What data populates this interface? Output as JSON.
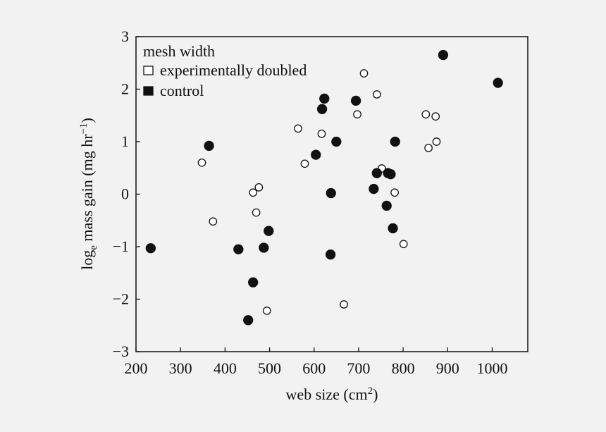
{
  "chart_data": {
    "type": "scatter",
    "xlabel": "web size (cm",
    "xlabel_sup": "2",
    "xlabel_tail": ")",
    "ylabel_main": "log",
    "ylabel_sub": "e",
    "ylabel_rest": " mass gain (mg hr",
    "ylabel_sup": "−1",
    "ylabel_tail": ")",
    "xlim": [
      200,
      1080
    ],
    "ylim": [
      -3,
      3
    ],
    "xticks": [
      200,
      300,
      400,
      500,
      600,
      700,
      800,
      900,
      1000
    ],
    "yticks": [
      -3,
      -2,
      -1,
      0,
      1,
      2,
      3
    ],
    "ytick_labels": [
      "−3",
      "−2",
      "−1",
      "0",
      "1",
      "2",
      "3"
    ],
    "grid": false,
    "legend": {
      "title": "mesh width",
      "position": "top-left",
      "entries": [
        "experimentally doubled",
        "control"
      ]
    },
    "series": [
      {
        "name": "experimentally doubled",
        "marker": "open-circle",
        "points": [
          [
            348,
            0.6
          ],
          [
            373,
            -0.52
          ],
          [
            463,
            0.03
          ],
          [
            470,
            -0.35
          ],
          [
            476,
            0.13
          ],
          [
            494,
            -2.22
          ],
          [
            564,
            1.25
          ],
          [
            579,
            0.58
          ],
          [
            617,
            1.15
          ],
          [
            667,
            -2.1
          ],
          [
            697,
            1.52
          ],
          [
            712,
            2.3
          ],
          [
            741,
            1.9
          ],
          [
            752,
            0.49
          ],
          [
            781,
            0.03
          ],
          [
            801,
            -0.95
          ],
          [
            851,
            1.52
          ],
          [
            857,
            0.88
          ],
          [
            873,
            1.48
          ],
          [
            875,
            1.0
          ]
        ]
      },
      {
        "name": "control",
        "marker": "filled-circle",
        "points": [
          [
            233,
            -1.03
          ],
          [
            364,
            0.92
          ],
          [
            430,
            -1.05
          ],
          [
            452,
            -2.4
          ],
          [
            463,
            -1.68
          ],
          [
            487,
            -1.02
          ],
          [
            498,
            -0.7
          ],
          [
            604,
            0.75
          ],
          [
            618,
            1.62
          ],
          [
            623,
            1.82
          ],
          [
            637,
            -1.15
          ],
          [
            638,
            0.02
          ],
          [
            650,
            1.0
          ],
          [
            694,
            1.78
          ],
          [
            734,
            0.1
          ],
          [
            741,
            0.4
          ],
          [
            763,
            -0.22
          ],
          [
            766,
            0.4
          ],
          [
            772,
            0.38
          ],
          [
            777,
            -0.65
          ],
          [
            782,
            1.0
          ],
          [
            890,
            2.65
          ],
          [
            1013,
            2.12
          ]
        ]
      }
    ]
  }
}
